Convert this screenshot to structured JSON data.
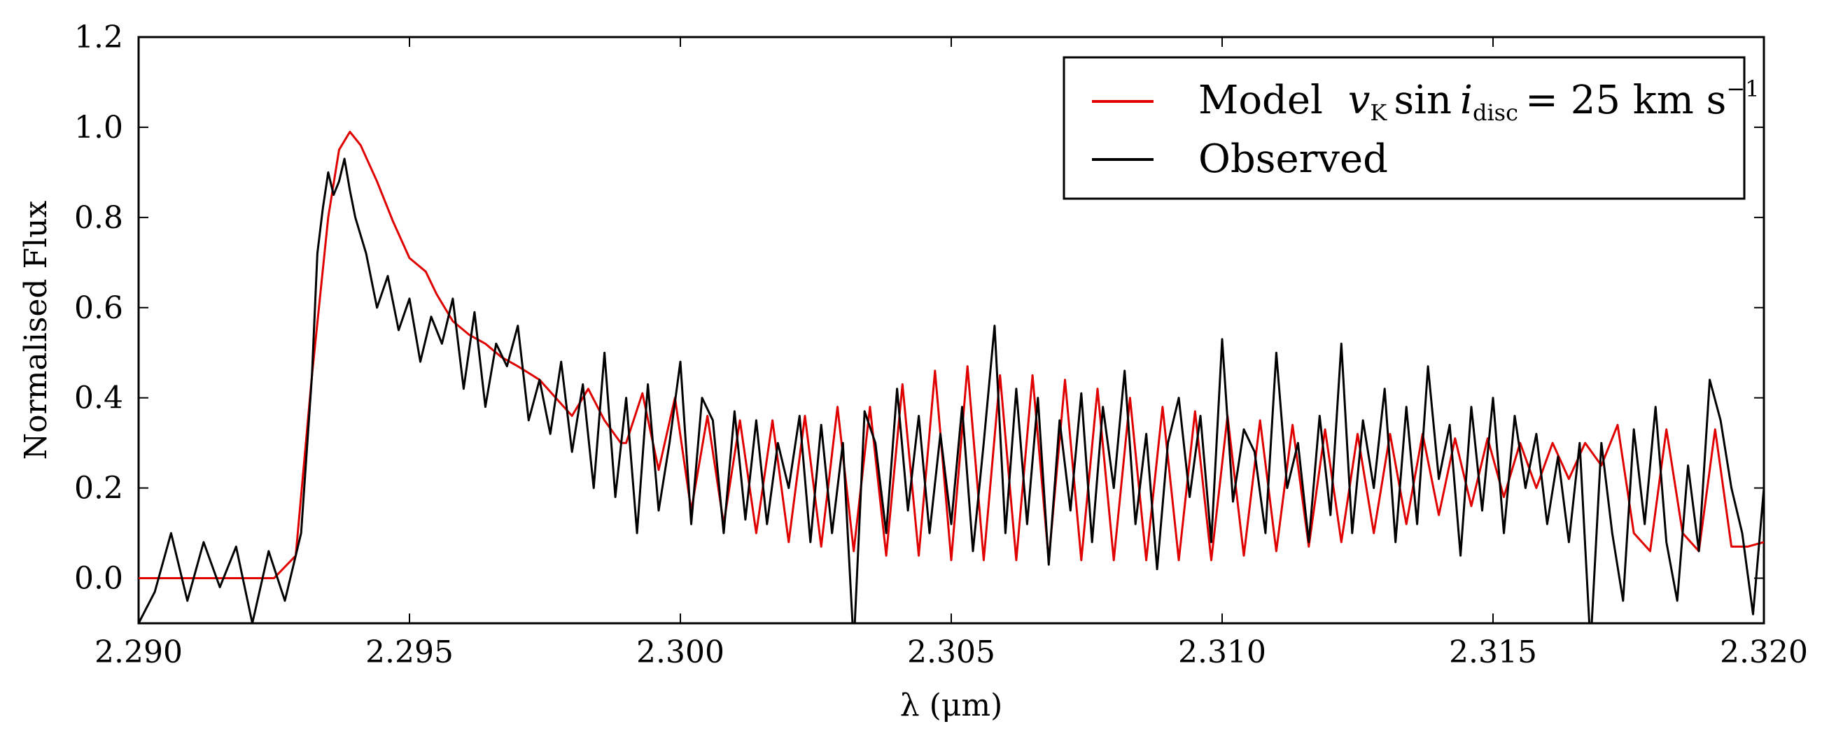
{
  "chart_data": {
    "type": "line",
    "xlabel": "λ (μm)",
    "ylabel": "Normalised Flux",
    "xlim": [
      2.29,
      2.32
    ],
    "ylim": [
      -0.1,
      1.2
    ],
    "x_ticks": [
      "2.290",
      "2.295",
      "2.300",
      "2.305",
      "2.310",
      "2.315",
      "2.320"
    ],
    "x_tick_values": [
      2.29,
      2.295,
      2.3,
      2.305,
      2.31,
      2.315,
      2.32
    ],
    "y_ticks": [
      "0.0",
      "0.2",
      "0.4",
      "0.6",
      "0.8",
      "1.0",
      "1.2"
    ],
    "y_tick_values": [
      0.0,
      0.2,
      0.4,
      0.6,
      0.8,
      1.0,
      1.2
    ],
    "legend_position": "top-right",
    "series": [
      {
        "name": "Model v_K sin i_disc = 25 km s^-1",
        "legend_label_prefix": "Model",
        "color": "#e00000",
        "x": [
          2.29,
          2.2925,
          2.2929,
          2.2932,
          2.2935,
          2.2937,
          2.2939,
          2.2941,
          2.2944,
          2.2947,
          2.295,
          2.2953,
          2.2955,
          2.2958,
          2.2961,
          2.2964,
          2.2967,
          2.297,
          2.2974,
          2.2977,
          2.298,
          2.2983,
          2.2986,
          2.2989,
          2.299,
          2.2993,
          2.2996,
          2.2999,
          2.3002,
          2.3005,
          2.3008,
          2.3011,
          2.3014,
          2.3017,
          2.302,
          2.3023,
          2.3026,
          2.3029,
          2.3032,
          2.3035,
          2.3038,
          2.3041,
          2.3044,
          2.3047,
          2.305,
          2.3053,
          2.3056,
          2.3059,
          2.3062,
          2.3065,
          2.3068,
          2.3071,
          2.3074,
          2.3077,
          2.308,
          2.3083,
          2.3086,
          2.3089,
          2.3092,
          2.3095,
          2.3098,
          2.3101,
          2.3104,
          2.3107,
          2.311,
          2.3113,
          2.3116,
          2.3119,
          2.3122,
          2.3125,
          2.3128,
          2.3131,
          2.3134,
          2.3137,
          2.314,
          2.3143,
          2.3146,
          2.3149,
          2.3152,
          2.3155,
          2.3158,
          2.3161,
          2.3164,
          2.3167,
          2.317,
          2.3173,
          2.3176,
          2.3179,
          2.3182,
          2.3185,
          2.3188,
          2.3191,
          2.3194,
          2.3197,
          2.32
        ],
        "y": [
          0.0,
          0.0,
          0.05,
          0.45,
          0.8,
          0.95,
          0.99,
          0.96,
          0.88,
          0.79,
          0.71,
          0.68,
          0.63,
          0.57,
          0.54,
          0.52,
          0.49,
          0.47,
          0.44,
          0.4,
          0.36,
          0.42,
          0.35,
          0.3,
          0.3,
          0.41,
          0.24,
          0.4,
          0.15,
          0.36,
          0.12,
          0.35,
          0.1,
          0.35,
          0.08,
          0.36,
          0.07,
          0.38,
          0.06,
          0.38,
          0.05,
          0.43,
          0.05,
          0.46,
          0.04,
          0.47,
          0.04,
          0.45,
          0.04,
          0.45,
          0.04,
          0.44,
          0.04,
          0.42,
          0.04,
          0.4,
          0.04,
          0.38,
          0.04,
          0.37,
          0.04,
          0.36,
          0.05,
          0.35,
          0.06,
          0.34,
          0.07,
          0.33,
          0.08,
          0.32,
          0.1,
          0.32,
          0.12,
          0.32,
          0.14,
          0.31,
          0.16,
          0.31,
          0.18,
          0.3,
          0.2,
          0.3,
          0.22,
          0.3,
          0.25,
          0.34,
          0.1,
          0.06,
          0.33,
          0.1,
          0.06,
          0.33,
          0.07,
          0.07,
          0.08
        ]
      },
      {
        "name": "Observed",
        "color": "#000000",
        "x": [
          2.29,
          2.2903,
          2.2906,
          2.2909,
          2.2912,
          2.2915,
          2.2918,
          2.2921,
          2.2924,
          2.2927,
          2.293,
          2.2932,
          2.2933,
          2.2934,
          2.2935,
          2.2936,
          2.2937,
          2.2938,
          2.2939,
          2.294,
          2.2942,
          2.2944,
          2.2946,
          2.2948,
          2.295,
          2.2952,
          2.2954,
          2.2956,
          2.2958,
          2.296,
          2.2962,
          2.2964,
          2.2966,
          2.2968,
          2.297,
          2.2972,
          2.2974,
          2.2976,
          2.2978,
          2.298,
          2.2982,
          2.2984,
          2.2986,
          2.2988,
          2.299,
          2.2992,
          2.2994,
          2.2996,
          2.2998,
          2.3,
          2.3002,
          2.3004,
          2.3006,
          2.3008,
          2.301,
          2.3012,
          2.3014,
          2.3016,
          2.3018,
          2.302,
          2.3022,
          2.3024,
          2.3026,
          2.3028,
          2.303,
          2.3032,
          2.3034,
          2.3036,
          2.3038,
          2.304,
          2.3042,
          2.3044,
          2.3046,
          2.3048,
          2.305,
          2.3052,
          2.3054,
          2.3056,
          2.3058,
          2.306,
          2.3062,
          2.3064,
          2.3066,
          2.3068,
          2.307,
          2.3072,
          2.3074,
          2.3076,
          2.3078,
          2.308,
          2.3082,
          2.3084,
          2.3086,
          2.3088,
          2.309,
          2.3092,
          2.3094,
          2.3096,
          2.3098,
          2.31,
          2.3102,
          2.3104,
          2.3106,
          2.3108,
          2.311,
          2.3112,
          2.3114,
          2.3116,
          2.3118,
          2.312,
          2.3122,
          2.3124,
          2.3126,
          2.3128,
          2.313,
          2.3132,
          2.3134,
          2.3136,
          2.3138,
          2.314,
          2.3142,
          2.3144,
          2.3146,
          2.3148,
          2.315,
          2.3152,
          2.3154,
          2.3156,
          2.3158,
          2.316,
          2.3162,
          2.3164,
          2.3166,
          2.3168,
          2.317,
          2.3172,
          2.3174,
          2.3176,
          2.3178,
          2.318,
          2.3182,
          2.3184,
          2.3186,
          2.3188,
          2.319,
          2.3192,
          2.3194,
          2.3196,
          2.3198,
          2.32
        ],
        "y": [
          -0.1,
          -0.03,
          0.1,
          -0.05,
          0.08,
          -0.02,
          0.07,
          -0.1,
          0.06,
          -0.05,
          0.1,
          0.45,
          0.72,
          0.82,
          0.9,
          0.85,
          0.88,
          0.93,
          0.86,
          0.8,
          0.72,
          0.6,
          0.67,
          0.55,
          0.62,
          0.48,
          0.58,
          0.52,
          0.62,
          0.42,
          0.59,
          0.38,
          0.52,
          0.47,
          0.56,
          0.35,
          0.44,
          0.32,
          0.48,
          0.28,
          0.43,
          0.2,
          0.5,
          0.18,
          0.4,
          0.1,
          0.43,
          0.15,
          0.3,
          0.48,
          0.12,
          0.4,
          0.35,
          0.1,
          0.37,
          0.13,
          0.35,
          0.12,
          0.3,
          0.2,
          0.36,
          0.08,
          0.34,
          0.1,
          0.3,
          -0.15,
          0.37,
          0.3,
          0.1,
          0.42,
          0.15,
          0.36,
          0.1,
          0.32,
          0.12,
          0.38,
          0.06,
          0.3,
          0.56,
          0.1,
          0.42,
          0.12,
          0.4,
          0.03,
          0.35,
          0.15,
          0.41,
          0.08,
          0.38,
          0.2,
          0.46,
          0.12,
          0.32,
          0.02,
          0.3,
          0.4,
          0.18,
          0.36,
          0.08,
          0.53,
          0.17,
          0.33,
          0.28,
          0.1,
          0.5,
          0.2,
          0.3,
          0.08,
          0.36,
          0.14,
          0.52,
          0.1,
          0.35,
          0.2,
          0.42,
          0.08,
          0.38,
          0.12,
          0.47,
          0.22,
          0.34,
          0.05,
          0.38,
          0.15,
          0.4,
          0.1,
          0.36,
          0.2,
          0.32,
          0.12,
          0.27,
          0.08,
          0.3,
          -0.15,
          0.3,
          0.1,
          -0.05,
          0.33,
          0.12,
          0.38,
          0.08,
          -0.05,
          0.25,
          0.06,
          0.44,
          0.35,
          0.2,
          0.1,
          -0.08,
          0.2
        ]
      }
    ]
  },
  "legend": {
    "model_prefix": "Model",
    "observed_label": "Observed"
  }
}
